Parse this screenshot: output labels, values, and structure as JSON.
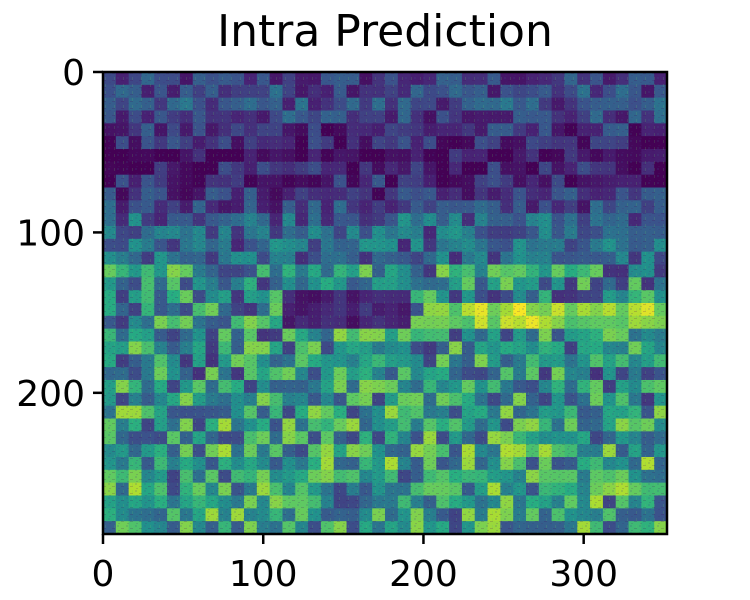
{
  "chart_data": {
    "type": "heatmap",
    "title": "Intra Prediction",
    "xlabel": "",
    "ylabel": "",
    "xlim": [
      0,
      352
    ],
    "ylim": [
      288,
      0
    ],
    "xticks": [
      0,
      100,
      200,
      300
    ],
    "yticks": [
      0,
      100,
      200
    ],
    "colormap": "viridis",
    "grid": false,
    "image_width": 352,
    "image_height": 288
  },
  "colors": {
    "dark": "#440154",
    "mid": "#31688e",
    "teal": "#21918c",
    "green": "#5ec962",
    "bright": "#fde725"
  }
}
